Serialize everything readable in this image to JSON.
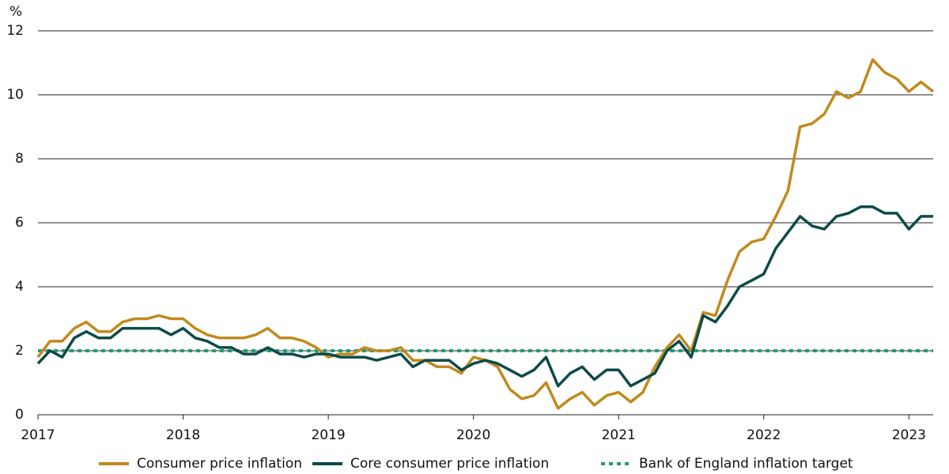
{
  "chart_data": {
    "type": "line",
    "y_unit": "%",
    "x": [
      2017,
      2017.083,
      2017.167,
      2017.25,
      2017.333,
      2017.417,
      2017.5,
      2017.583,
      2017.667,
      2017.75,
      2017.833,
      2017.917,
      2018,
      2018.083,
      2018.167,
      2018.25,
      2018.333,
      2018.417,
      2018.5,
      2018.583,
      2018.667,
      2018.75,
      2018.833,
      2018.917,
      2019,
      2019.083,
      2019.167,
      2019.25,
      2019.333,
      2019.417,
      2019.5,
      2019.583,
      2019.667,
      2019.75,
      2019.833,
      2019.917,
      2020,
      2020.083,
      2020.167,
      2020.25,
      2020.333,
      2020.417,
      2020.5,
      2020.583,
      2020.667,
      2020.75,
      2020.833,
      2020.917,
      2021,
      2021.083,
      2021.167,
      2021.25,
      2021.333,
      2021.417,
      2021.5,
      2021.583,
      2021.667,
      2021.75,
      2021.833,
      2021.917,
      2022,
      2022.083,
      2022.167,
      2022.25,
      2022.333,
      2022.417,
      2022.5,
      2022.583,
      2022.667,
      2022.75,
      2022.833,
      2022.917,
      2023,
      2023.083,
      2023.167
    ],
    "series": [
      {
        "name": "Consumer price inflation",
        "color": "#c18a1d",
        "dash": false,
        "values": [
          1.8,
          2.3,
          2.3,
          2.7,
          2.9,
          2.6,
          2.6,
          2.9,
          3.0,
          3.0,
          3.1,
          3.0,
          3.0,
          2.7,
          2.5,
          2.4,
          2.4,
          2.4,
          2.5,
          2.7,
          2.4,
          2.4,
          2.3,
          2.1,
          1.8,
          1.9,
          1.9,
          2.1,
          2.0,
          2.0,
          2.1,
          1.7,
          1.7,
          1.5,
          1.5,
          1.3,
          1.8,
          1.7,
          1.5,
          0.8,
          0.5,
          0.6,
          1.0,
          0.2,
          0.5,
          0.7,
          0.3,
          0.6,
          0.7,
          0.4,
          0.7,
          1.5,
          2.1,
          2.5,
          2.0,
          3.2,
          3.1,
          4.2,
          5.1,
          5.4,
          5.5,
          6.2,
          7.0,
          9.0,
          9.1,
          9.4,
          10.1,
          9.9,
          10.1,
          11.1,
          10.7,
          10.5,
          10.1,
          10.4,
          10.1
        ]
      },
      {
        "name": "Core consumer price inflation",
        "color": "#0e4a4a",
        "dash": false,
        "values": [
          1.6,
          2.0,
          1.8,
          2.4,
          2.6,
          2.4,
          2.4,
          2.7,
          2.7,
          2.7,
          2.7,
          2.5,
          2.7,
          2.4,
          2.3,
          2.1,
          2.1,
          1.9,
          1.9,
          2.1,
          1.9,
          1.9,
          1.8,
          1.9,
          1.9,
          1.8,
          1.8,
          1.8,
          1.7,
          1.8,
          1.9,
          1.5,
          1.7,
          1.7,
          1.7,
          1.4,
          1.6,
          1.7,
          1.6,
          1.4,
          1.2,
          1.4,
          1.8,
          0.9,
          1.3,
          1.5,
          1.1,
          1.4,
          1.4,
          0.9,
          1.1,
          1.3,
          2.0,
          2.3,
          1.8,
          3.1,
          2.9,
          3.4,
          4.0,
          4.2,
          4.4,
          5.2,
          5.7,
          6.2,
          5.9,
          5.8,
          6.2,
          6.3,
          6.5,
          6.5,
          6.3,
          6.3,
          5.8,
          6.2,
          6.2
        ]
      },
      {
        "name": "Bank of England inflation target",
        "color": "#1f9e74",
        "dash": true,
        "values": [
          2,
          2,
          2,
          2,
          2,
          2,
          2,
          2,
          2,
          2,
          2,
          2,
          2,
          2,
          2,
          2,
          2,
          2,
          2,
          2,
          2,
          2,
          2,
          2,
          2,
          2,
          2,
          2,
          2,
          2,
          2,
          2,
          2,
          2,
          2,
          2,
          2,
          2,
          2,
          2,
          2,
          2,
          2,
          2,
          2,
          2,
          2,
          2,
          2,
          2,
          2,
          2,
          2,
          2,
          2,
          2,
          2,
          2,
          2,
          2,
          2,
          2,
          2,
          2,
          2,
          2,
          2,
          2,
          2,
          2,
          2,
          2,
          2,
          2,
          2
        ]
      }
    ],
    "xlim": [
      2017,
      2023.167
    ],
    "xticks": [
      2017,
      2018,
      2019,
      2020,
      2021,
      2022,
      2023
    ],
    "ylim": [
      0,
      12
    ],
    "yticks": [
      0,
      2,
      4,
      6,
      8,
      10,
      12
    ],
    "grid": true,
    "legend": "bottom"
  }
}
